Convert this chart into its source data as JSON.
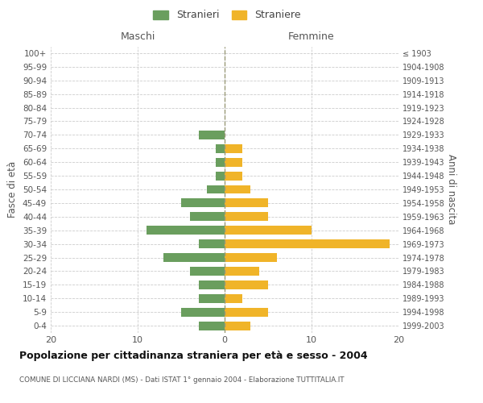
{
  "age_groups": [
    "100+",
    "95-99",
    "90-94",
    "85-89",
    "80-84",
    "75-79",
    "70-74",
    "65-69",
    "60-64",
    "55-59",
    "50-54",
    "45-49",
    "40-44",
    "35-39",
    "30-34",
    "25-29",
    "20-24",
    "15-19",
    "10-14",
    "5-9",
    "0-4"
  ],
  "birth_years": [
    "≤ 1903",
    "1904-1908",
    "1909-1913",
    "1914-1918",
    "1919-1923",
    "1924-1928",
    "1929-1933",
    "1934-1938",
    "1939-1943",
    "1944-1948",
    "1949-1953",
    "1954-1958",
    "1959-1963",
    "1964-1968",
    "1969-1973",
    "1974-1978",
    "1979-1983",
    "1984-1988",
    "1989-1993",
    "1994-1998",
    "1999-2003"
  ],
  "maschi": [
    0,
    0,
    0,
    0,
    0,
    0,
    3,
    1,
    1,
    1,
    2,
    5,
    4,
    9,
    3,
    7,
    4,
    3,
    3,
    5,
    3
  ],
  "femmine": [
    0,
    0,
    0,
    0,
    0,
    0,
    0,
    2,
    2,
    2,
    3,
    5,
    5,
    10,
    19,
    6,
    4,
    5,
    2,
    5,
    3
  ],
  "color_maschi": "#6a9e5e",
  "color_femmine": "#f0b429",
  "title": "Popolazione per cittadinanza straniera per età e sesso - 2004",
  "subtitle": "COMUNE DI LICCIANA NARDI (MS) - Dati ISTAT 1° gennaio 2004 - Elaborazione TUTTITALIA.IT",
  "ylabel_left": "Fasce di età",
  "ylabel_right": "Anni di nascita",
  "xlabel_left": "Maschi",
  "xlabel_right": "Femmine",
  "legend_maschi": "Stranieri",
  "legend_femmine": "Straniere",
  "xlim": 20,
  "background_color": "#ffffff",
  "grid_color": "#cccccc"
}
